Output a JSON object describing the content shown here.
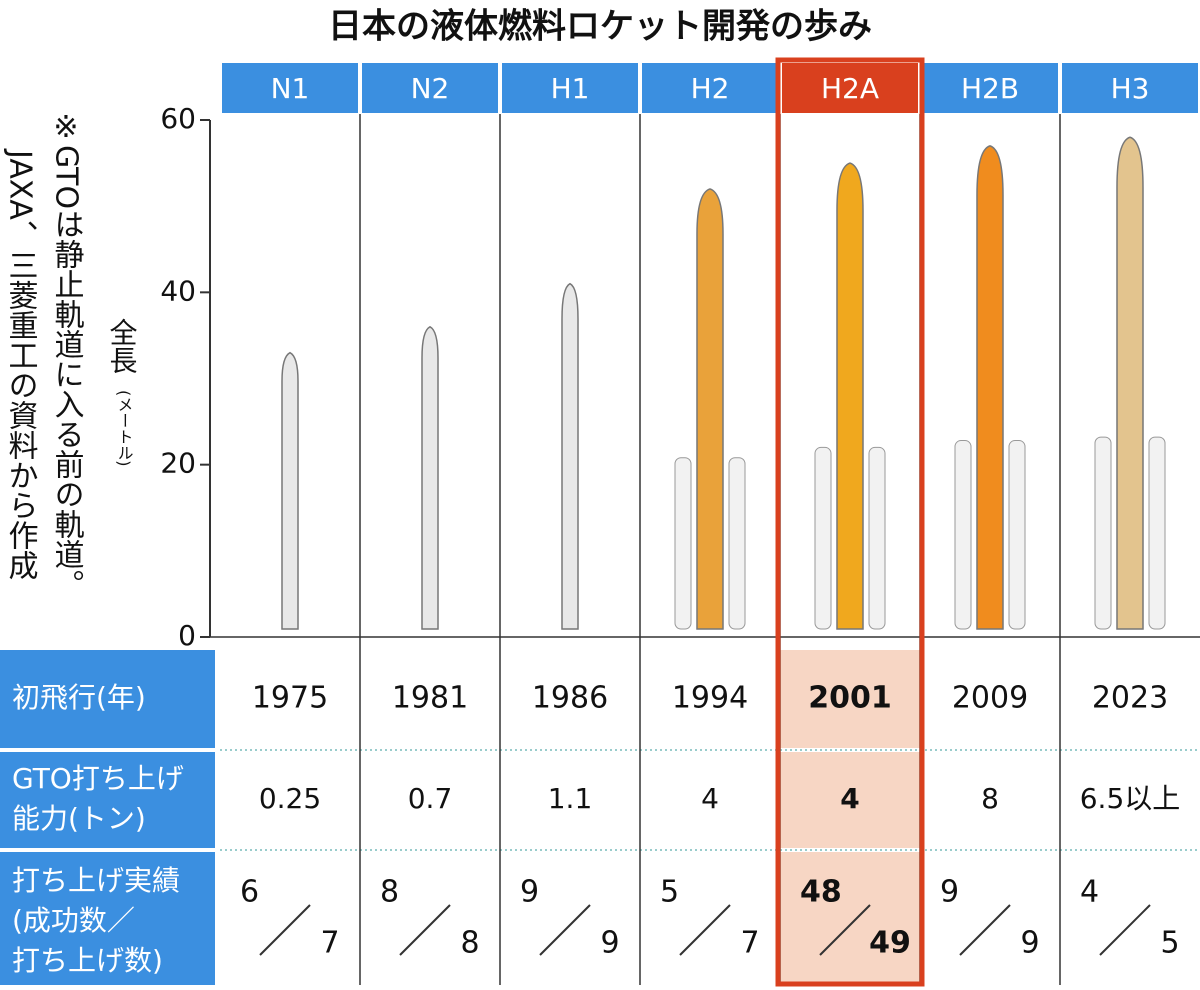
{
  "chart_data": {
    "type": "bar",
    "title": "日本の液体燃料ロケット開発の歩み",
    "categories": [
      "N1",
      "N2",
      "H1",
      "H2",
      "H2A",
      "H2B",
      "H3"
    ],
    "y_label": "全長",
    "y_unit": "(メートル)",
    "values": [
      33,
      36,
      41,
      52,
      55,
      57,
      58
    ],
    "colors": [
      "#e8e8e8",
      "#e8e8e8",
      "#e8e8e8",
      "#e9a23a",
      "#f0a81e",
      "#f08c1e",
      "#e3c48e"
    ],
    "ylim": [
      0,
      60
    ],
    "yticks": [
      0,
      20,
      40,
      60
    ],
    "highlight": "H2A",
    "note": "※GTOは静止軌道に入る前の軌道。",
    "source": "JAXA、三菱重工の資料から作成"
  },
  "table": {
    "first_flight": {
      "label": "初飛行(年)",
      "values": [
        "1975",
        "1981",
        "1986",
        "1994",
        "2001",
        "2009",
        "2023"
      ]
    },
    "gto_capacity": {
      "label": [
        "GTO打ち上げ",
        "能力(トン)"
      ],
      "values": [
        "0.25",
        "0.7",
        "1.1",
        "4",
        "4",
        "8",
        "6.5以上"
      ]
    },
    "launch_record": {
      "label": [
        "打ち上げ実績",
        "(成功数／",
        "打ち上げ数)"
      ],
      "success": [
        "6",
        "8",
        "9",
        "5",
        "48",
        "9",
        "4"
      ],
      "total": [
        "7",
        "8",
        "9",
        "7",
        "49",
        "9",
        "5"
      ]
    }
  }
}
